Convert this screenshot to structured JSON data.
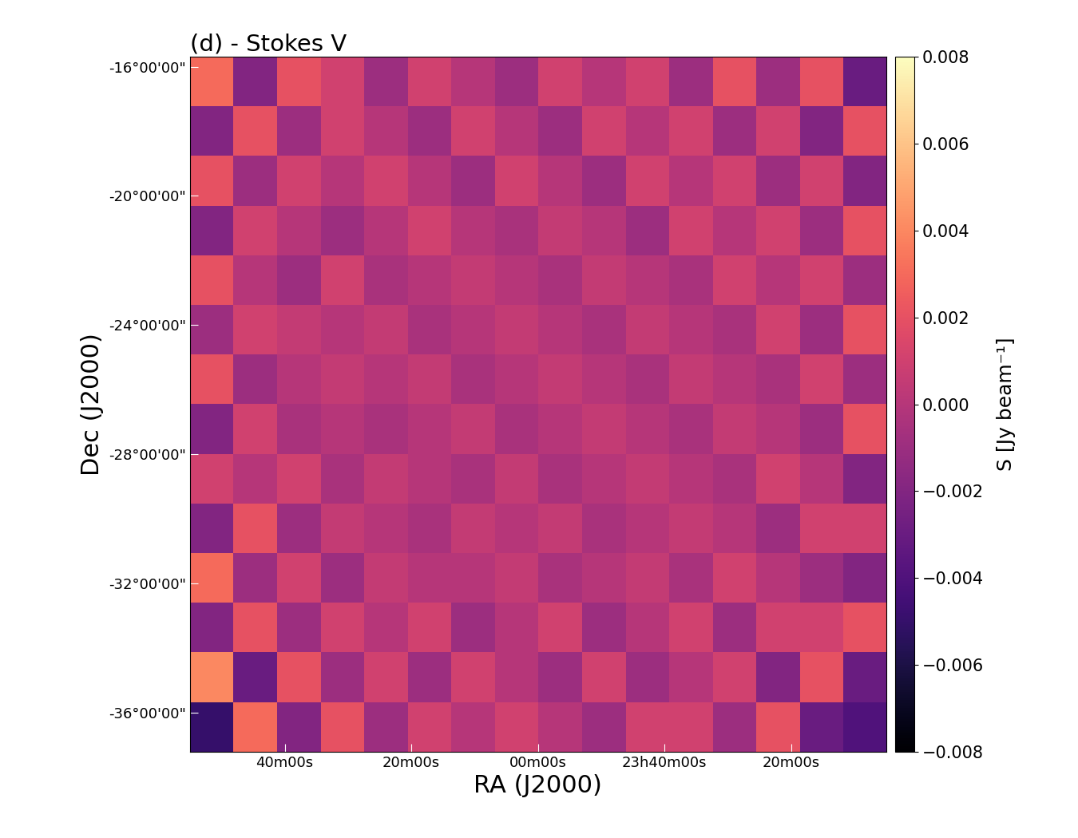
{
  "chart_data": {
    "type": "heatmap",
    "title": "(d) - Stokes V",
    "x_label": "RA (J2000)",
    "y_label": "Dec (J2000)",
    "xlim": [
      55,
      -55
    ],
    "ylim": [
      -37.2,
      -15.7
    ],
    "xticks": [
      {
        "value": 40,
        "label": "40m00s"
      },
      {
        "value": 20,
        "label": "20m00s"
      },
      {
        "value": 0,
        "label": "00m00s"
      },
      {
        "value": -20,
        "label": "23h40m00s"
      },
      {
        "value": -40,
        "label": "20m00s"
      }
    ],
    "yticks": [
      {
        "value": -16,
        "label": "-16°00'00\""
      },
      {
        "value": -20,
        "label": "-20°00'00\""
      },
      {
        "value": -24,
        "label": "-24°00'00\""
      },
      {
        "value": -28,
        "label": "-28°00'00\""
      },
      {
        "value": -32,
        "label": "-32°00'00\""
      },
      {
        "value": -36,
        "label": "-36°00'00\""
      }
    ],
    "cells": [
      [
        0.003,
        -0.002,
        0.002,
        0.001,
        -0.001,
        0.001,
        0.0,
        -0.001,
        0.001,
        0.0,
        0.001,
        -0.001,
        0.002,
        -0.001,
        0.002,
        -0.003
      ],
      [
        -0.002,
        0.002,
        -0.001,
        0.001,
        0.0,
        -0.001,
        0.001,
        0.0,
        -0.001,
        0.001,
        0.0,
        0.001,
        -0.001,
        0.001,
        -0.002,
        0.002
      ],
      [
        0.002,
        -0.001,
        0.001,
        0.0,
        0.001,
        0.0,
        -0.001,
        0.001,
        0.0,
        -0.001,
        0.001,
        0.0,
        0.001,
        -0.001,
        0.001,
        -0.002
      ],
      [
        -0.002,
        0.001,
        0.0,
        -0.001,
        0.0,
        0.001,
        0.0,
        -0.0005,
        0.0005,
        0.0,
        -0.001,
        0.001,
        0.0,
        0.001,
        -0.001,
        0.002
      ],
      [
        0.002,
        0.0,
        -0.001,
        0.001,
        -0.0005,
        0.0,
        0.0005,
        0.0,
        -0.0005,
        0.0005,
        0.0,
        -0.0005,
        0.001,
        0.0,
        0.001,
        -0.001
      ],
      [
        -0.001,
        0.001,
        0.0005,
        0.0,
        0.0005,
        -0.0005,
        0.0,
        0.0005,
        0.0,
        -0.0005,
        0.0005,
        0.0,
        -0.0005,
        0.001,
        -0.001,
        0.002
      ],
      [
        0.002,
        -0.001,
        0.0,
        0.0005,
        0.0,
        0.0005,
        -0.0005,
        0.0,
        0.0005,
        0.0,
        -0.0005,
        0.0005,
        0.0,
        -0.0005,
        0.001,
        -0.001
      ],
      [
        -0.002,
        0.001,
        -0.0005,
        0.0,
        -0.0005,
        0.0,
        0.0005,
        -0.0005,
        0.0,
        0.0005,
        0.0,
        -0.0005,
        0.0005,
        0.0,
        -0.001,
        0.002
      ],
      [
        0.001,
        0.0,
        0.001,
        -0.0005,
        0.0005,
        0.0,
        -0.0005,
        0.0005,
        -0.0005,
        0.0,
        0.0005,
        0.0,
        -0.0005,
        0.001,
        0.0,
        -0.002
      ],
      [
        -0.002,
        0.002,
        -0.001,
        0.0005,
        0.0,
        -0.0005,
        0.0005,
        0.0,
        0.0005,
        -0.0005,
        0.0,
        0.0005,
        0.0,
        -0.001,
        0.001,
        0.001
      ],
      [
        0.003,
        -0.001,
        0.001,
        -0.001,
        0.0005,
        0.0,
        0.0,
        0.0005,
        -0.0005,
        0.0,
        0.0005,
        -0.0005,
        0.001,
        0.0,
        -0.001,
        -0.002
      ],
      [
        -0.002,
        0.002,
        -0.001,
        0.001,
        0.0,
        0.001,
        -0.001,
        0.0,
        0.001,
        -0.001,
        0.0,
        0.001,
        -0.001,
        0.001,
        0.001,
        0.002
      ],
      [
        0.004,
        -0.003,
        0.002,
        -0.001,
        0.001,
        -0.001,
        0.001,
        0.0,
        -0.001,
        0.001,
        -0.001,
        0.0,
        0.001,
        -0.002,
        0.002,
        -0.003
      ],
      [
        -0.005,
        0.003,
        -0.002,
        0.002,
        -0.001,
        0.001,
        0.0,
        0.001,
        0.0,
        -0.001,
        0.001,
        0.001,
        -0.001,
        0.002,
        -0.003,
        -0.004
      ]
    ],
    "colorbar": {
      "label": "S [Jy beam⁻¹]",
      "range": [
        -0.008,
        0.008
      ],
      "ticks": [
        {
          "value": -0.008,
          "label": "−0.008"
        },
        {
          "value": -0.006,
          "label": "−0.006"
        },
        {
          "value": -0.004,
          "label": "−0.004"
        },
        {
          "value": -0.002,
          "label": "−0.002"
        },
        {
          "value": 0.0,
          "label": "0.000"
        },
        0.002,
        0.004,
        0.006,
        0.008
      ]
    }
  }
}
